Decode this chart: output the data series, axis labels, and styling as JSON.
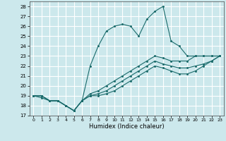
{
  "xlabel": "Humidex (Indice chaleur)",
  "xlim": [
    -0.5,
    23.5
  ],
  "ylim": [
    17,
    28.5
  ],
  "yticks": [
    17,
    18,
    19,
    20,
    21,
    22,
    23,
    24,
    25,
    26,
    27,
    28
  ],
  "xticks": [
    0,
    1,
    2,
    3,
    4,
    5,
    6,
    7,
    8,
    9,
    10,
    11,
    12,
    13,
    14,
    15,
    16,
    17,
    18,
    19,
    20,
    21,
    22,
    23
  ],
  "bg_color": "#cce8ec",
  "grid_color": "#ffffff",
  "line_color": "#1a6b6b",
  "line1": [
    19,
    19,
    18.5,
    18.5,
    18,
    17.5,
    18.5,
    22,
    24,
    25.5,
    26,
    26.2,
    26,
    25,
    26.7,
    27.5,
    28,
    24.5,
    24,
    23,
    23,
    23,
    23,
    23
  ],
  "line2": [
    19,
    19,
    18.5,
    18.5,
    18,
    17.5,
    18.5,
    19.2,
    19.5,
    20,
    20.5,
    21,
    21.5,
    22,
    22.5,
    23,
    22.8,
    22.5,
    22.5,
    22.5,
    23,
    23,
    23,
    23
  ],
  "line3": [
    19,
    19,
    18.5,
    18.5,
    18,
    17.5,
    18.5,
    19,
    19.2,
    19.5,
    20,
    20.5,
    21,
    21.5,
    22,
    22.5,
    22.2,
    22,
    21.8,
    21.8,
    22,
    22.2,
    22.5,
    23
  ],
  "line4": [
    19,
    18.8,
    18.5,
    18.5,
    18,
    17.5,
    18.5,
    19,
    19,
    19.2,
    19.5,
    20,
    20.5,
    21,
    21.5,
    22,
    21.8,
    21.5,
    21.2,
    21.2,
    21.5,
    22,
    22.5,
    23
  ]
}
